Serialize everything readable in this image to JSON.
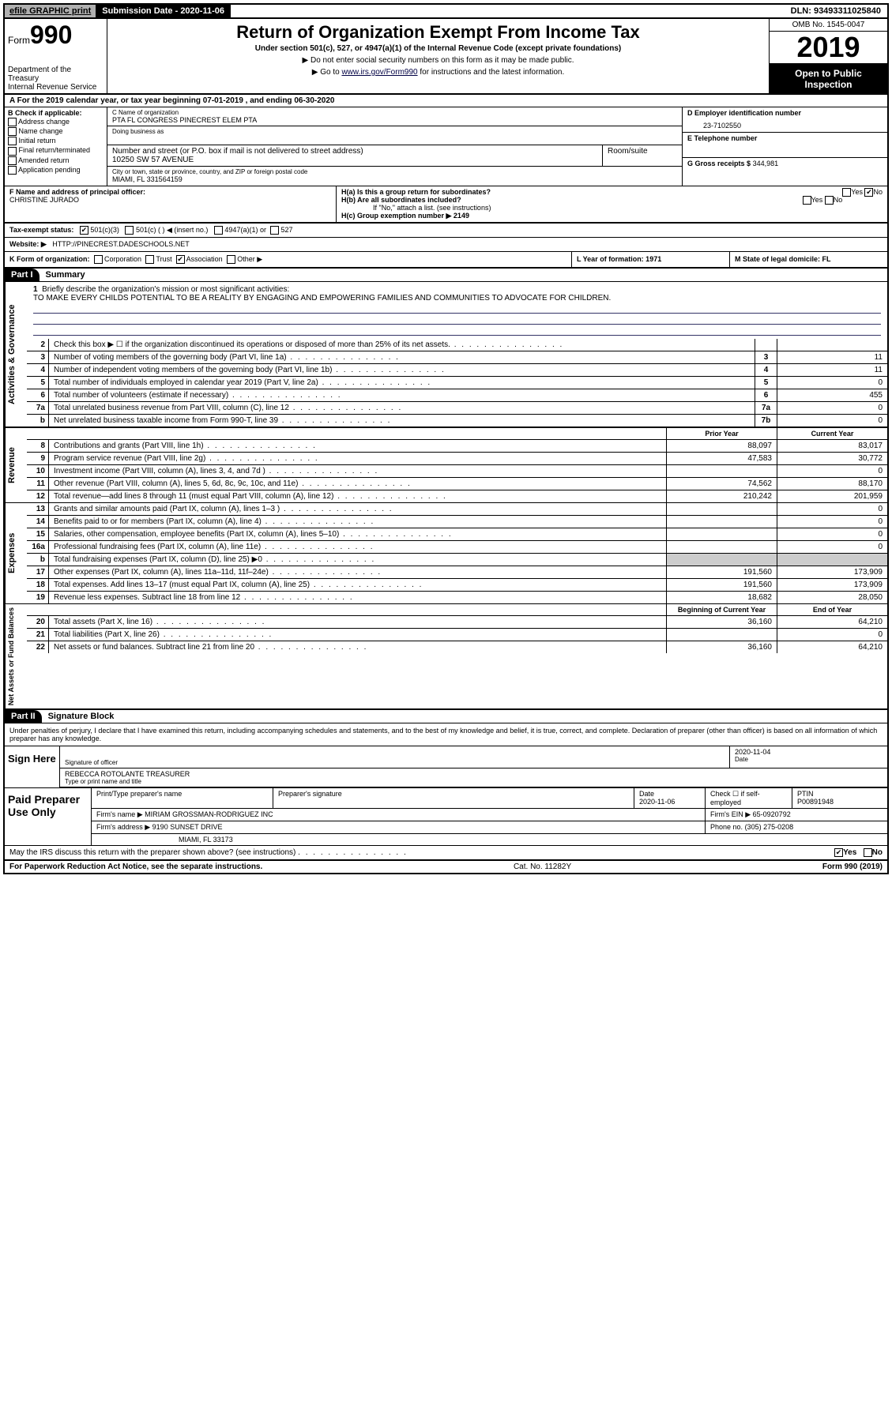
{
  "topbar": {
    "efile": "efile GRAPHIC print",
    "sub_date_label": "Submission Date - 2020-11-06",
    "dln": "DLN: 93493311025840"
  },
  "header": {
    "form_prefix": "Form",
    "form_num": "990",
    "dept": "Department of the Treasury\nInternal Revenue Service",
    "title": "Return of Organization Exempt From Income Tax",
    "subtitle": "Under section 501(c), 527, or 4947(a)(1) of the Internal Revenue Code (except private foundations)",
    "note1": "▶ Do not enter social security numbers on this form as it may be made public.",
    "note2_pre": "▶ Go to ",
    "note2_link": "www.irs.gov/Form990",
    "note2_post": " for instructions and the latest information.",
    "omb": "OMB No. 1545-0047",
    "year": "2019",
    "open": "Open to Public Inspection"
  },
  "row_a": "A For the 2019 calendar year, or tax year beginning 07-01-2019   , and ending 06-30-2020",
  "box_b": {
    "label": "B Check if applicable:",
    "items": [
      "Address change",
      "Name change",
      "Initial return",
      "Final return/terminated",
      "Amended return",
      "Application pending"
    ]
  },
  "box_c": {
    "name_label": "C Name of organization",
    "name": "PTA FL CONGRESS PINECREST ELEM PTA",
    "dba_label": "Doing business as",
    "addr_label": "Number and street (or P.O. box if mail is not delivered to street address)",
    "suite_label": "Room/suite",
    "addr": "10250 SW 57 AVENUE",
    "city_label": "City or town, state or province, country, and ZIP or foreign postal code",
    "city": "MIAMI, FL  331564159"
  },
  "box_d": {
    "label": "D Employer identification number",
    "val": "23-7102550"
  },
  "box_e": {
    "label": "E Telephone number",
    "val": ""
  },
  "box_g": {
    "label": "G Gross receipts $",
    "val": "344,981"
  },
  "box_f": {
    "label": "F  Name and address of principal officer:",
    "val": "CHRISTINE JURADO"
  },
  "box_h": {
    "a": "H(a)  Is this a group return for subordinates?",
    "b": "H(b)  Are all subordinates included?",
    "b_note": "If \"No,\" attach a list. (see instructions)",
    "c": "H(c)  Group exemption number ▶   2149",
    "yes": "Yes",
    "no": "No"
  },
  "row_i": {
    "label": "Tax-exempt status:",
    "opts": [
      "501(c)(3)",
      "501(c) (  ) ◀ (insert no.)",
      "4947(a)(1) or",
      "527"
    ]
  },
  "row_j": {
    "label": "Website: ▶",
    "val": "HTTP://PINECREST.DADESCHOOLS.NET"
  },
  "row_k": {
    "label": "K Form of organization:",
    "opts": [
      "Corporation",
      "Trust",
      "Association",
      "Other ▶"
    ]
  },
  "row_l": "L Year of formation: 1971",
  "row_m": "M State of legal domicile: FL",
  "part1": {
    "hdr": "Part I",
    "title": "Summary"
  },
  "mission": {
    "num": "1",
    "label": "Briefly describe the organization's mission or most significant activities:",
    "text": "TO MAKE EVERY CHILDS POTENTIAL TO BE A REALITY BY ENGAGING AND EMPOWERING FAMILIES AND COMMUNITIES TO ADVOCATE FOR CHILDREN."
  },
  "side_labels": {
    "gov": "Activities & Governance",
    "rev": "Revenue",
    "exp": "Expenses",
    "net": "Net Assets or Fund Balances"
  },
  "col_hdrs": {
    "prior": "Prior Year",
    "current": "Current Year",
    "begin": "Beginning of Current Year",
    "end": "End of Year"
  },
  "lines_gov": [
    {
      "n": "2",
      "d": "Check this box ▶ ☐  if the organization discontinued its operations or disposed of more than 25% of its net assets.",
      "box": "",
      "v": ""
    },
    {
      "n": "3",
      "d": "Number of voting members of the governing body (Part VI, line 1a)",
      "box": "3",
      "v": "11"
    },
    {
      "n": "4",
      "d": "Number of independent voting members of the governing body (Part VI, line 1b)",
      "box": "4",
      "v": "11"
    },
    {
      "n": "5",
      "d": "Total number of individuals employed in calendar year 2019 (Part V, line 2a)",
      "box": "5",
      "v": "0"
    },
    {
      "n": "6",
      "d": "Total number of volunteers (estimate if necessary)",
      "box": "6",
      "v": "455"
    },
    {
      "n": "7a",
      "d": "Total unrelated business revenue from Part VIII, column (C), line 12",
      "box": "7a",
      "v": "0"
    },
    {
      "n": "b",
      "d": "Net unrelated business taxable income from Form 990-T, line 39",
      "box": "7b",
      "v": "0"
    }
  ],
  "lines_rev": [
    {
      "n": "8",
      "d": "Contributions and grants (Part VIII, line 1h)",
      "p": "88,097",
      "c": "83,017"
    },
    {
      "n": "9",
      "d": "Program service revenue (Part VIII, line 2g)",
      "p": "47,583",
      "c": "30,772"
    },
    {
      "n": "10",
      "d": "Investment income (Part VIII, column (A), lines 3, 4, and 7d )",
      "p": "",
      "c": "0"
    },
    {
      "n": "11",
      "d": "Other revenue (Part VIII, column (A), lines 5, 6d, 8c, 9c, 10c, and 11e)",
      "p": "74,562",
      "c": "88,170"
    },
    {
      "n": "12",
      "d": "Total revenue—add lines 8 through 11 (must equal Part VIII, column (A), line 12)",
      "p": "210,242",
      "c": "201,959"
    }
  ],
  "lines_exp": [
    {
      "n": "13",
      "d": "Grants and similar amounts paid (Part IX, column (A), lines 1–3 )",
      "p": "",
      "c": "0"
    },
    {
      "n": "14",
      "d": "Benefits paid to or for members (Part IX, column (A), line 4)",
      "p": "",
      "c": "0"
    },
    {
      "n": "15",
      "d": "Salaries, other compensation, employee benefits (Part IX, column (A), lines 5–10)",
      "p": "",
      "c": "0"
    },
    {
      "n": "16a",
      "d": "Professional fundraising fees (Part IX, column (A), line 11e)",
      "p": "",
      "c": "0"
    },
    {
      "n": "b",
      "d": "Total fundraising expenses (Part IX, column (D), line 25) ▶0",
      "p": "shade",
      "c": "shade"
    },
    {
      "n": "17",
      "d": "Other expenses (Part IX, column (A), lines 11a–11d, 11f–24e)",
      "p": "191,560",
      "c": "173,909"
    },
    {
      "n": "18",
      "d": "Total expenses. Add lines 13–17 (must equal Part IX, column (A), line 25)",
      "p": "191,560",
      "c": "173,909"
    },
    {
      "n": "19",
      "d": "Revenue less expenses. Subtract line 18 from line 12",
      "p": "18,682",
      "c": "28,050"
    }
  ],
  "lines_net": [
    {
      "n": "20",
      "d": "Total assets (Part X, line 16)",
      "p": "36,160",
      "c": "64,210"
    },
    {
      "n": "21",
      "d": "Total liabilities (Part X, line 26)",
      "p": "",
      "c": "0"
    },
    {
      "n": "22",
      "d": "Net assets or fund balances. Subtract line 21 from line 20",
      "p": "36,160",
      "c": "64,210"
    }
  ],
  "part2": {
    "hdr": "Part II",
    "title": "Signature Block"
  },
  "sig_decl": "Under penalties of perjury, I declare that I have examined this return, including accompanying schedules and statements, and to the best of my knowledge and belief, it is true, correct, and complete. Declaration of preparer (other than officer) is based on all information of which preparer has any knowledge.",
  "sign_here": {
    "label": "Sign Here",
    "sig_label": "Signature of officer",
    "date_label": "Date",
    "date": "2020-11-04",
    "name": "REBECCA ROTOLANTE  TREASURER",
    "name_label": "Type or print name and title"
  },
  "paid_prep": {
    "label": "Paid Preparer Use Only",
    "h1": "Print/Type preparer's name",
    "h2": "Preparer's signature",
    "h3": "Date",
    "h4": "Check ☐ if self-employed",
    "h5": "PTIN",
    "date": "2020-11-06",
    "ptin": "P00891948",
    "firm_label": "Firm's name    ▶",
    "firm": "MIRIAM GROSSMAN-RODRIGUEZ INC",
    "ein_label": "Firm's EIN ▶",
    "ein": "65-0920792",
    "addr_label": "Firm's address ▶",
    "addr1": "9190 SUNSET DRIVE",
    "addr2": "MIAMI, FL  33173",
    "phone_label": "Phone no.",
    "phone": "(305) 275-0208"
  },
  "discuss": {
    "q": "May the IRS discuss this return with the preparer shown above? (see instructions)",
    "yes": "Yes",
    "no": "No"
  },
  "footer": {
    "left": "For Paperwork Reduction Act Notice, see the separate instructions.",
    "mid": "Cat. No. 11282Y",
    "right": "Form 990 (2019)"
  }
}
